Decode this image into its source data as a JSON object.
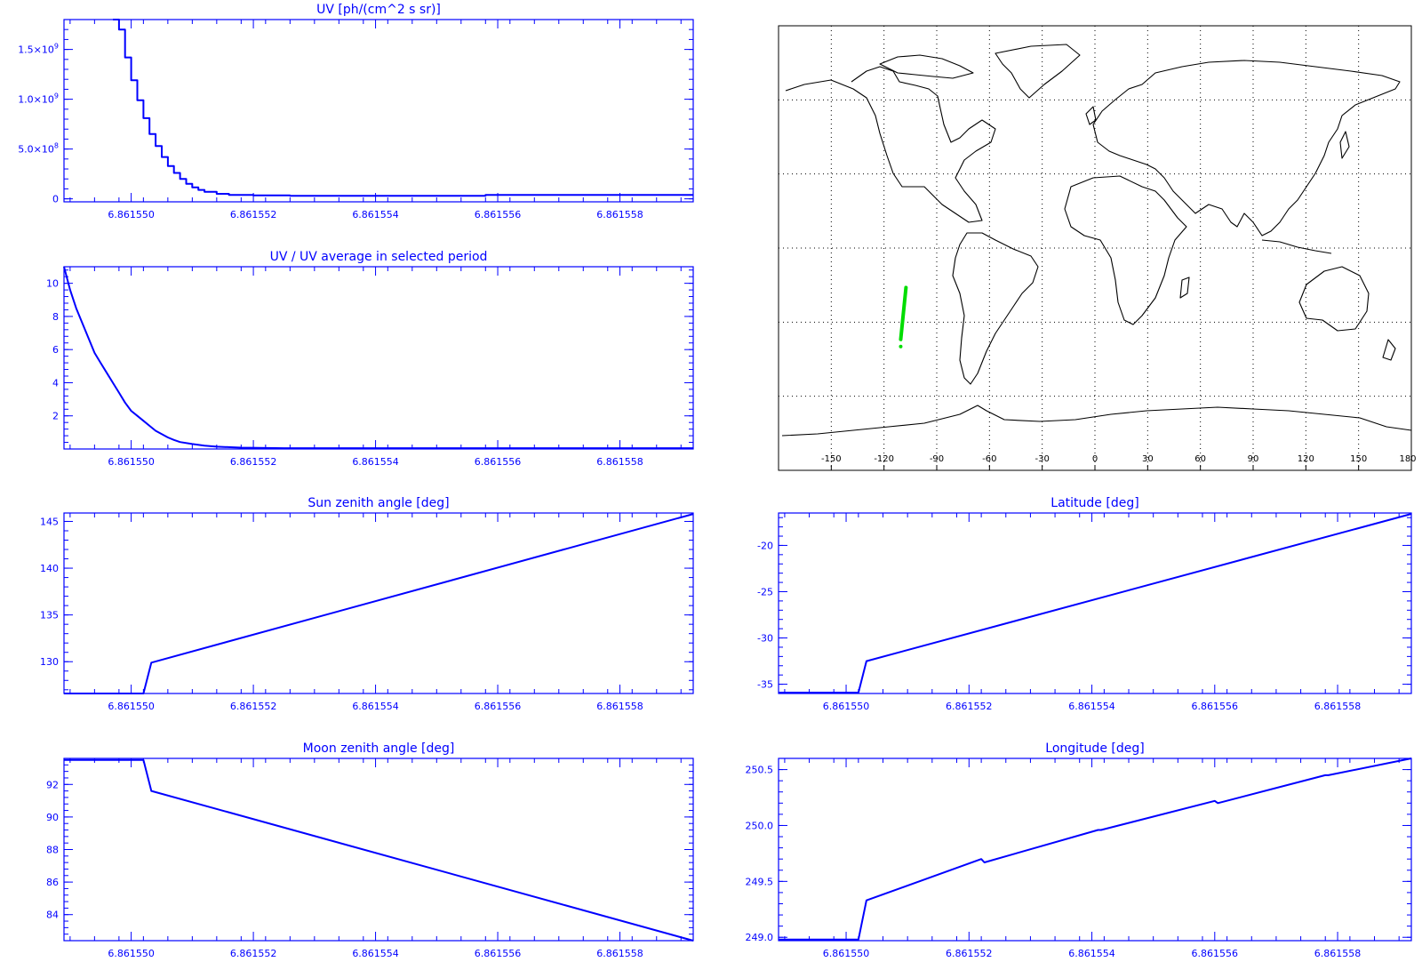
{
  "colors": {
    "plot": "#0000ff",
    "map_outline": "#000000",
    "map_grid": "#000000",
    "track": "#00dd00"
  },
  "map": {
    "x_ticks": [
      "-150",
      "-120",
      "-90",
      "-60",
      "-30",
      "0",
      "30",
      "60",
      "90",
      "120",
      "150",
      "180"
    ],
    "grid": "dotted",
    "track": {
      "lon": [
        -110.5,
        -107.5
      ],
      "lat": [
        -37,
        -16
      ]
    }
  },
  "chart_data": [
    {
      "id": "uv",
      "type": "line",
      "step": true,
      "title": "UV [ph/(cm^2 s sr)]",
      "xlim": [
        6.8615489,
        6.8615592
      ],
      "x_tick_labels": [
        "6.861550",
        "6.861552",
        "6.861554",
        "6.861556",
        "6.861558"
      ],
      "ylim": [
        -30000000,
        1800000000
      ],
      "y_ticks": [
        0,
        500000000,
        1000000000,
        1500000000
      ],
      "y_tick_labels": [
        "0",
        "5.0x10^8",
        "1.0x10^9",
        "1.5x10^9"
      ],
      "x": [
        6.8615497,
        6.8615498,
        6.8615499,
        6.86155,
        6.8615501,
        6.8615502,
        6.8615503,
        6.8615504,
        6.8615505,
        6.8615506,
        6.8615507,
        6.8615508,
        6.8615509,
        6.861551,
        6.8615511,
        6.8615512,
        6.8615514,
        6.8615516,
        6.861552,
        6.8615526,
        6.861554,
        6.8615558,
        6.8615592
      ],
      "y": [
        1800000000,
        1700000000,
        1420000000,
        1190000000,
        990000000,
        810000000,
        650000000,
        530000000,
        420000000,
        330000000,
        260000000,
        200000000,
        150000000,
        115000000,
        90000000,
        70000000,
        50000000,
        40000000,
        35000000,
        30000000,
        30000000,
        40000000,
        40000000
      ]
    },
    {
      "id": "uv-ratio",
      "type": "line",
      "title": "UV / UV average in selected period",
      "xlim": [
        6.8615489,
        6.8615592
      ],
      "x_tick_labels": [
        "6.861550",
        "6.861552",
        "6.861554",
        "6.861556",
        "6.861558"
      ],
      "ylim": [
        0,
        11
      ],
      "y_ticks": [
        2,
        4,
        6,
        8,
        10
      ],
      "y_tick_labels": [
        "2",
        "4",
        "6",
        "8",
        "10"
      ],
      "x": [
        6.8615489,
        6.861549,
        6.8615491,
        6.8615492,
        6.8615493,
        6.8615494,
        6.8615495,
        6.8615496,
        6.8615497,
        6.8615498,
        6.8615499,
        6.86155,
        6.8615501,
        6.8615502,
        6.8615503,
        6.8615504,
        6.8615505,
        6.8615506,
        6.8615507,
        6.8615508,
        6.861551,
        6.8615512,
        6.8615514,
        6.8615518,
        6.8615525,
        6.8615592
      ],
      "y": [
        11,
        9.6,
        8.5,
        7.6,
        6.7,
        5.8,
        5.2,
        4.6,
        4.0,
        3.4,
        2.8,
        2.3,
        2.0,
        1.7,
        1.4,
        1.1,
        0.9,
        0.7,
        0.55,
        0.42,
        0.3,
        0.2,
        0.14,
        0.08,
        0.05,
        0.05
      ]
    },
    {
      "id": "sun-zenith",
      "type": "line",
      "title": "Sun zenith angle [deg]",
      "xlim": [
        6.8615489,
        6.8615592
      ],
      "x_tick_labels": [
        "6.861550",
        "6.861552",
        "6.861554",
        "6.861556",
        "6.861558"
      ],
      "ylim": [
        126.6,
        145.9
      ],
      "y_ticks": [
        130,
        135,
        140,
        145
      ],
      "y_tick_labels": [
        "130",
        "135",
        "140",
        "145"
      ],
      "x": [
        6.8615489,
        6.8615502,
        6.86155033,
        6.8615592
      ],
      "y": [
        126.6,
        126.6,
        129.9,
        145.8
      ]
    },
    {
      "id": "moon-zenith",
      "type": "line",
      "title": "Moon zenith angle [deg]",
      "xlim": [
        6.8615489,
        6.8615592
      ],
      "x_tick_labels": [
        "6.861550",
        "6.861552",
        "6.861554",
        "6.861556",
        "6.861558"
      ],
      "ylim": [
        82.4,
        93.6
      ],
      "y_ticks": [
        84,
        86,
        88,
        90,
        92
      ],
      "y_tick_labels": [
        "84",
        "86",
        "88",
        "90",
        "92"
      ],
      "x": [
        6.8615489,
        6.8615502,
        6.86155033,
        6.8615592
      ],
      "y": [
        93.5,
        93.5,
        91.6,
        82.4
      ]
    },
    {
      "id": "latitude",
      "type": "line",
      "title": "Latitude [deg]",
      "xlim": [
        6.8615489,
        6.8615592
      ],
      "x_tick_labels": [
        "6.861550",
        "6.861552",
        "6.861554",
        "6.861556",
        "6.861558"
      ],
      "ylim": [
        -36,
        -16.5
      ],
      "y_ticks": [
        -35,
        -30,
        -25,
        -20
      ],
      "y_tick_labels": [
        "-35",
        "-30",
        "-25",
        "-20"
      ],
      "x": [
        6.8615489,
        6.8615502,
        6.86155033,
        6.8615592
      ],
      "y": [
        -35.9,
        -35.9,
        -32.5,
        -16.6
      ]
    },
    {
      "id": "longitude",
      "type": "line",
      "title": "Longitude [deg]",
      "xlim": [
        6.8615489,
        6.8615592
      ],
      "x_tick_labels": [
        "6.861550",
        "6.861552",
        "6.861554",
        "6.861556",
        "6.861558"
      ],
      "ylim": [
        248.97,
        250.6
      ],
      "y_ticks": [
        249.0,
        249.5,
        250.0,
        250.5
      ],
      "y_tick_labels": [
        "249.0",
        "249.5",
        "250.0",
        "250.5"
      ],
      "x": [
        6.8615489,
        6.8615502,
        6.86155033,
        6.8615522,
        6.86155225,
        6.8615541,
        6.86155415,
        6.861556,
        6.86155605,
        6.8615578,
        6.86155785,
        6.8615592
      ],
      "y": [
        248.98,
        248.98,
        249.33,
        249.7,
        249.67,
        249.96,
        249.96,
        250.22,
        250.2,
        250.45,
        250.45,
        250.6
      ]
    }
  ]
}
